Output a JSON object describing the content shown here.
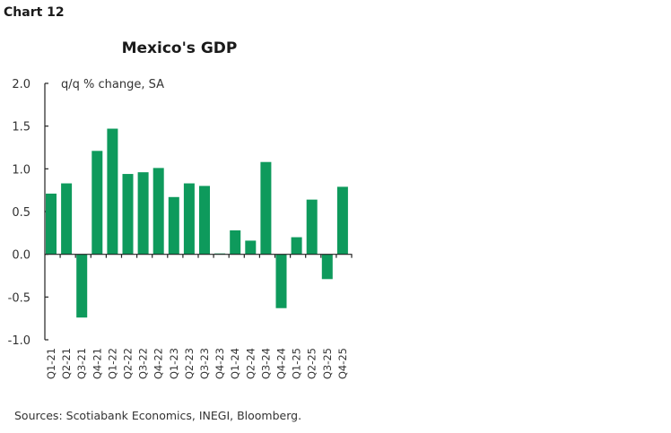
{
  "header": {
    "chart_label": "Chart 12"
  },
  "source": "Sources: Scotiabank Economics, INEGI, Bloomberg.",
  "chart_data": {
    "type": "bar",
    "title": "Mexico's GDP",
    "ylabel": "q/q % change, SA",
    "xlabel": "",
    "ylim": [
      -1.0,
      2.0
    ],
    "yticks": [
      "2.0",
      "1.5",
      "1.0",
      "0.5",
      "0.0",
      "-0.5",
      "-1.0"
    ],
    "categories": [
      "Q1-21",
      "Q2-21",
      "Q3-21",
      "Q4-21",
      "Q1-22",
      "Q2-22",
      "Q3-22",
      "Q4-22",
      "Q1-23",
      "Q2-23",
      "Q3-23",
      "Q4-23",
      "Q1-24",
      "Q2-24",
      "Q3-24",
      "Q4-24",
      "Q1-25",
      "Q2-25",
      "Q3-25",
      "Q4-25"
    ],
    "values": [
      0.71,
      0.83,
      -0.74,
      1.21,
      1.47,
      0.94,
      0.96,
      1.01,
      0.67,
      0.83,
      0.8,
      0.01,
      0.28,
      0.16,
      1.08,
      -0.63,
      0.2,
      0.64,
      -0.29,
      0.79
    ],
    "bar_color": "#0e9a5c",
    "grid": false,
    "legend": "none"
  }
}
